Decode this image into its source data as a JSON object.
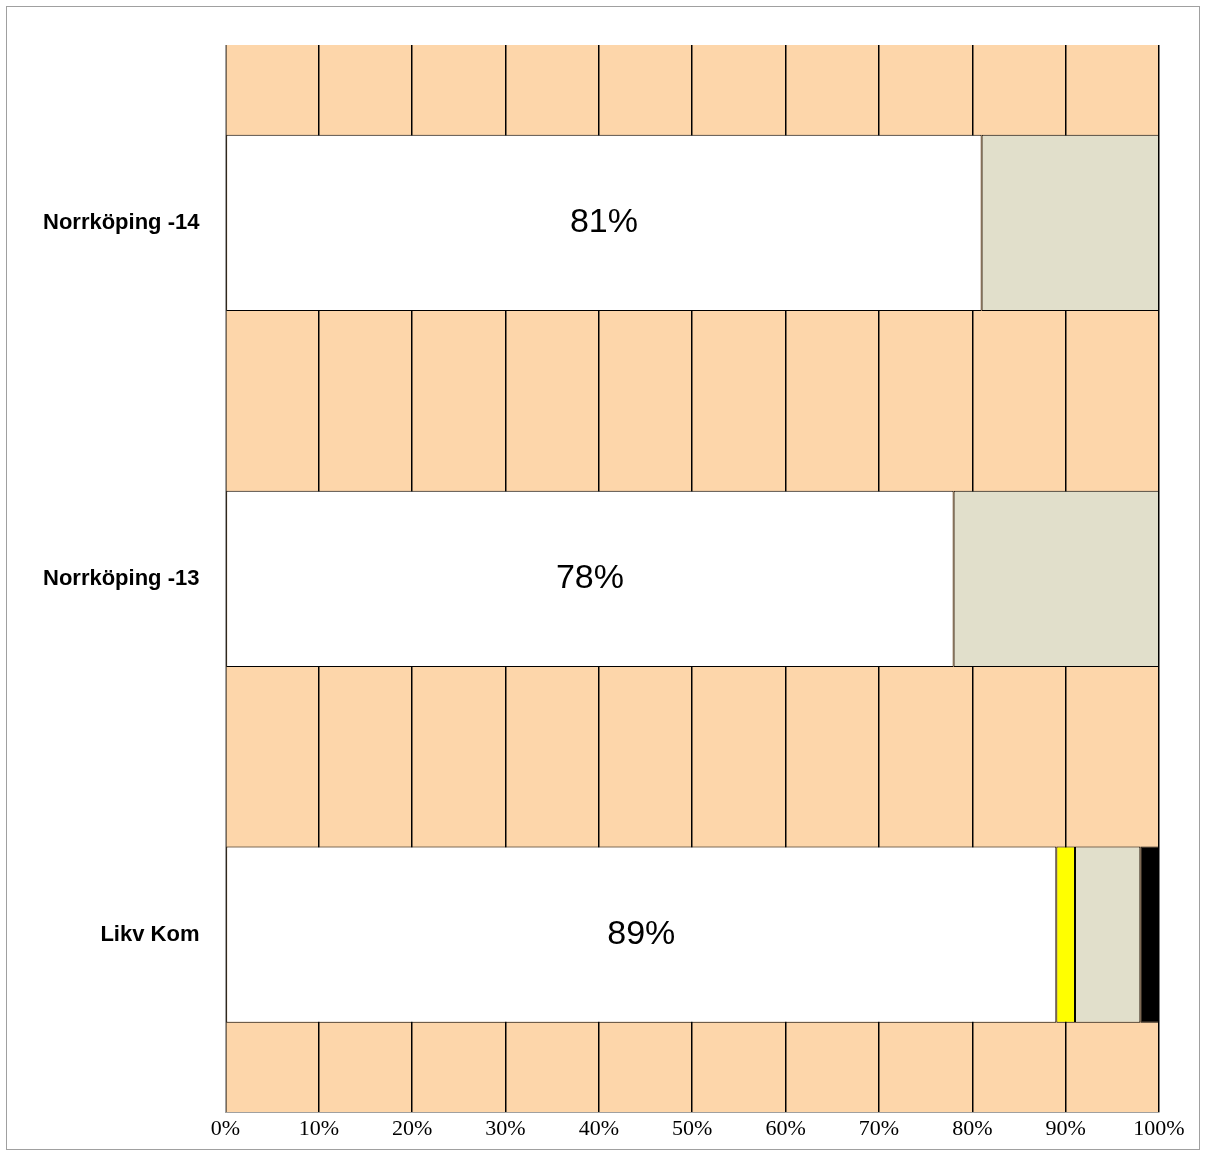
{
  "chart_data": {
    "type": "bar",
    "orientation": "horizontal",
    "stacked": true,
    "categories": [
      "Norrköping -14",
      "Norrköping -13",
      "Likv Kom"
    ],
    "series": [
      {
        "color": "#ffffff",
        "values": [
          81,
          78,
          89
        ],
        "value_labels": [
          "81%",
          "78%",
          "89%"
        ]
      },
      {
        "color": "#ffff00",
        "values": [
          0,
          0,
          2
        ]
      },
      {
        "color": "#e1dfcb",
        "values": [
          19,
          22,
          7
        ]
      },
      {
        "color": "#000000",
        "values": [
          0,
          0,
          2
        ]
      }
    ],
    "xlim": [
      0,
      100
    ],
    "xticks": [
      {
        "value": 0,
        "label": "0%"
      },
      {
        "value": 10,
        "label": "10%"
      },
      {
        "value": 20,
        "label": "20%"
      },
      {
        "value": 30,
        "label": "30%"
      },
      {
        "value": 40,
        "label": "40%"
      },
      {
        "value": 50,
        "label": "50%"
      },
      {
        "value": 60,
        "label": "60%"
      },
      {
        "value": 70,
        "label": "70%"
      },
      {
        "value": 80,
        "label": "80%"
      },
      {
        "value": 90,
        "label": "90%"
      },
      {
        "value": 100,
        "label": "100%"
      }
    ],
    "grid": "x",
    "legend": false
  }
}
